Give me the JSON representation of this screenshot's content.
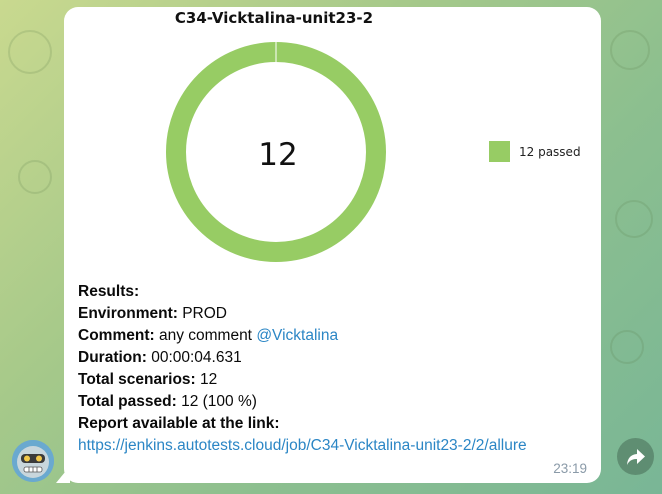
{
  "message": {
    "chart_data": {
      "type": "pie",
      "title": "C34-Vicktalina-unit23-2",
      "center_label": "12",
      "slices": [
        {
          "label": "12 passed",
          "value": 12,
          "color": "#97cc64"
        }
      ],
      "legend": [
        "12 passed"
      ],
      "legend_position": "right"
    },
    "results_heading": "Results:",
    "environment_label": "Environment:",
    "environment_value": "PROD",
    "comment_label": "Comment:",
    "comment_value": "any comment",
    "comment_mention": "@Vicktalina",
    "duration_label": "Duration:",
    "duration_value": "00:00:04.631",
    "total_scenarios_label": "Total scenarios:",
    "total_scenarios_value": "12",
    "total_passed_label": "Total passed:",
    "total_passed_value": "12 (100 %)",
    "report_label": "Report available at the link:",
    "report_link": "https://jenkins.autotests.cloud/job/C34-Vicktalina-unit23-2/2/allure",
    "time": "23:19"
  },
  "colors": {
    "pass_green": "#97cc64",
    "link_blue": "#2b86c5",
    "bubble_bg": "#ffffff"
  },
  "icons": {
    "forward": "forward-arrow-icon",
    "avatar": "bot-avatar"
  }
}
